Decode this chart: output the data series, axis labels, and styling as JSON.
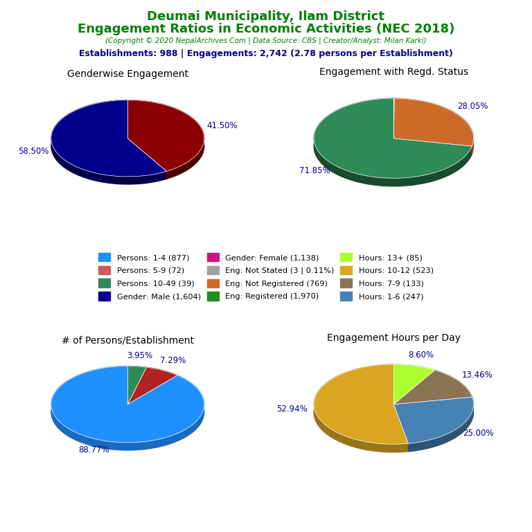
{
  "title_line1": "Deumai Municipality, Ilam District",
  "title_line2": "Engagement Ratios in Economic Activities (NEC 2018)",
  "subtitle": "(Copyright © 2020 NepalArchives.Com | Data Source: CBS | Creator/Analyst: Milan Karki)",
  "stats_line": "Establishments: 988 | Engagements: 2,742 (2.78 persons per Establishment)",
  "title_color": "#008000",
  "subtitle_color": "#008000",
  "stats_color": "#00008B",
  "pie1_title": "Genderwise Engagement",
  "pie1_values": [
    58.5,
    41.5
  ],
  "pie1_colors": [
    "#00008B",
    "#8B0000"
  ],
  "pie1_labels": [
    "58.50%",
    "41.50%"
  ],
  "pie1_startangle": 90,
  "pie2_title": "Engagement with Regd. Status",
  "pie2_values": [
    71.85,
    28.05,
    0.1
  ],
  "pie2_colors": [
    "#2E8B57",
    "#CD6A2A",
    "#006400"
  ],
  "pie2_labels": [
    "71.85%",
    "28.05%",
    ""
  ],
  "pie2_startangle": 90,
  "pie3_title": "# of Persons/Establishment",
  "pie3_values": [
    88.77,
    7.29,
    3.95
  ],
  "pie3_colors": [
    "#1E90FF",
    "#B22222",
    "#2E8B57"
  ],
  "pie3_labels": [
    "88.77%",
    "7.29%",
    "3.95%"
  ],
  "pie3_startangle": 90,
  "pie4_title": "Engagement Hours per Day",
  "pie4_values": [
    52.94,
    25.0,
    13.46,
    8.6
  ],
  "pie4_colors": [
    "#DAA520",
    "#4682B4",
    "#8B7355",
    "#ADFF2F"
  ],
  "pie4_labels": [
    "52.94%",
    "25.00%",
    "13.46%",
    "8.60%"
  ],
  "pie4_startangle": 90,
  "legend_items": [
    {
      "label": "Persons: 1-4 (877)",
      "color": "#1E90FF"
    },
    {
      "label": "Persons: 5-9 (72)",
      "color": "#CD5C5C"
    },
    {
      "label": "Persons: 10-49 (39)",
      "color": "#2E8B57"
    },
    {
      "label": "Gender: Male (1,604)",
      "color": "#00008B"
    },
    {
      "label": "Gender: Female (1,138)",
      "color": "#C71585"
    },
    {
      "label": "Eng: Not Stated (3 | 0.11%)",
      "color": "#A0A0A0"
    },
    {
      "label": "Eng: Not Registered (769)",
      "color": "#CD6A2A"
    },
    {
      "label": "Eng: Registered (1,970)",
      "color": "#228B22"
    },
    {
      "label": "Hours: 13+ (85)",
      "color": "#ADFF2F"
    },
    {
      "label": "Hours: 10-12 (523)",
      "color": "#DAA520"
    },
    {
      "label": "Hours: 7-9 (133)",
      "color": "#8B7355"
    },
    {
      "label": "Hours: 1-6 (247)",
      "color": "#4682B4"
    }
  ],
  "label_color": "#00008B",
  "bg_color": "#FFFFFF"
}
